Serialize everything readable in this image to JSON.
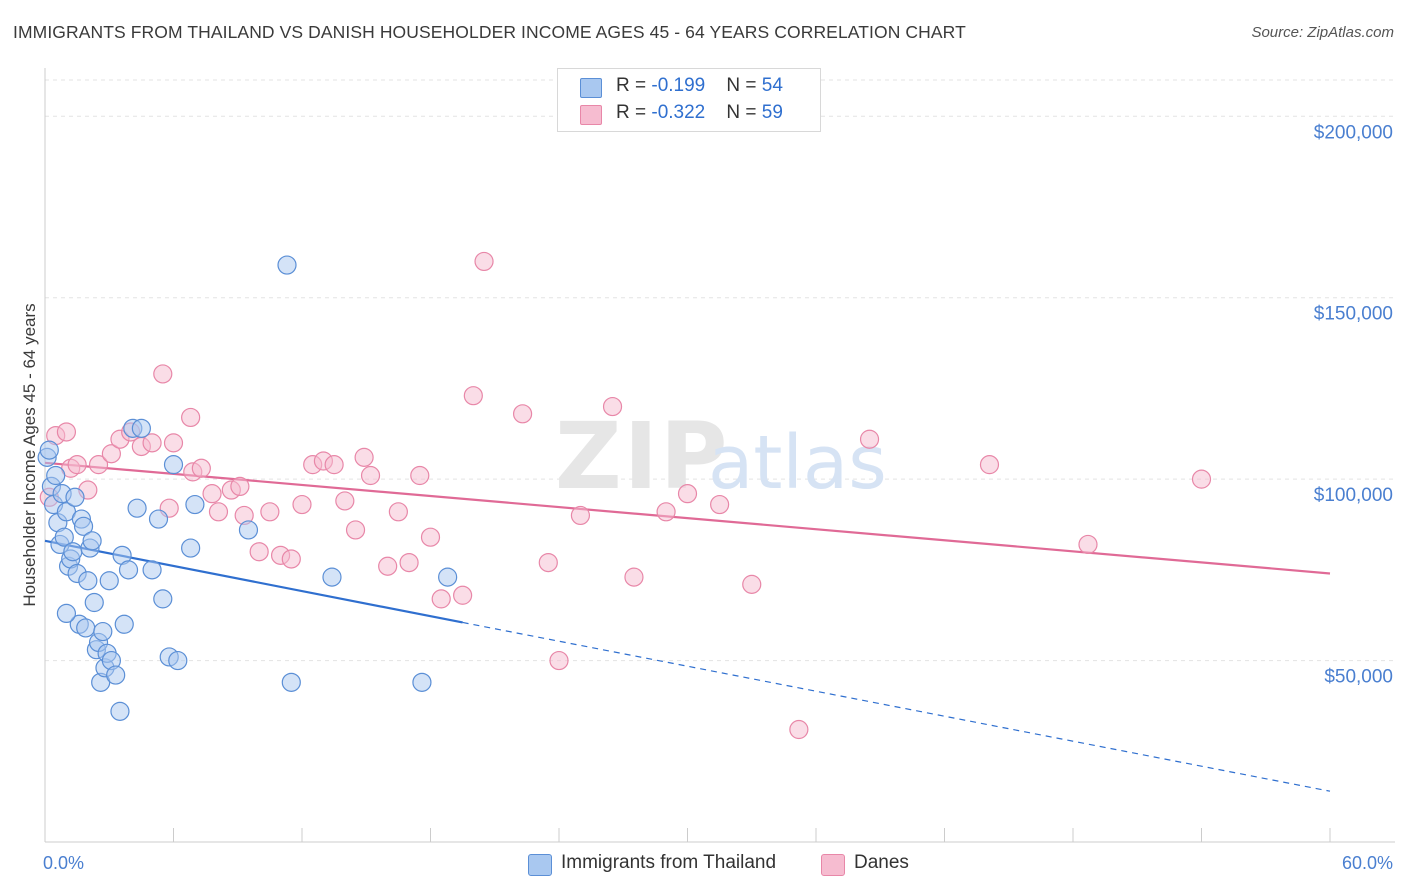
{
  "title": "IMMIGRANTS FROM THAILAND VS DANISH HOUSEHOLDER INCOME AGES 45 - 64 YEARS CORRELATION CHART",
  "source": "Source: ZipAtlas.com",
  "watermark": {
    "part1": "ZIP",
    "part2": "atlas"
  },
  "legend": {
    "series1": {
      "r_label": "R = ",
      "r_value": "-0.199",
      "n_label": "N = ",
      "n_value": "54"
    },
    "series2": {
      "r_label": "R = ",
      "r_value": "-0.322",
      "n_label": "N = ",
      "n_value": "59"
    }
  },
  "bottom_legend": [
    "Immigrants from Thailand",
    "Danes"
  ],
  "chart_data": {
    "type": "scatter",
    "ylabel": "Householder Income Ages 45 - 64 years",
    "x_tick_labels": [
      "0.0%",
      "60.0%"
    ],
    "y_tick_labels": [
      "$50,000",
      "$100,000",
      "$150,000",
      "$200,000"
    ],
    "y_ticks": [
      50000,
      100000,
      150000,
      200000
    ],
    "xlim": [
      0,
      60
    ],
    "ylim": [
      0,
      210000
    ],
    "grid": true,
    "legend_position": "top-center",
    "colors": {
      "series1_fill": "#a9c8f0",
      "series1_stroke": "#5b8fd6",
      "series1_line": "#2f6fcf",
      "series2_fill": "#f6bcd0",
      "series2_stroke": "#e887a8",
      "series2_line": "#e06a96",
      "grid": "#e3e3e3",
      "axis": "#cccccc",
      "tick_label": "#4a7fd0"
    },
    "series": [
      {
        "name": "Immigrants from Thailand",
        "x": [
          0.1,
          0.3,
          0.4,
          0.5,
          0.6,
          0.7,
          0.8,
          0.9,
          1.0,
          1.1,
          1.2,
          1.3,
          1.4,
          1.5,
          1.6,
          1.7,
          1.8,
          1.9,
          2.0,
          2.1,
          2.2,
          2.3,
          2.4,
          2.5,
          2.6,
          2.7,
          2.8,
          2.9,
          3.0,
          3.1,
          3.3,
          3.5,
          3.6,
          3.7,
          3.9,
          4.1,
          4.3,
          4.5,
          5.0,
          5.3,
          5.5,
          5.8,
          6.0,
          6.2,
          6.8,
          7.0,
          9.5,
          11.3,
          11.5,
          13.4,
          17.6,
          18.8,
          0.2,
          1.0
        ],
        "y": [
          106000,
          98000,
          93000,
          101000,
          88000,
          82000,
          96000,
          84000,
          91000,
          76000,
          78000,
          80000,
          95000,
          74000,
          60000,
          89000,
          87000,
          59000,
          72000,
          81000,
          83000,
          66000,
          53000,
          55000,
          44000,
          58000,
          48000,
          52000,
          72000,
          50000,
          46000,
          36000,
          79000,
          60000,
          75000,
          114000,
          92000,
          114000,
          75000,
          89000,
          67000,
          51000,
          104000,
          50000,
          81000,
          93000,
          86000,
          159000,
          44000,
          73000,
          44000,
          73000,
          108000,
          63000
        ],
        "trend": {
          "x": [
            0,
            19.5
          ],
          "y": [
            83000,
            60500
          ]
        },
        "trend_extension": {
          "x": [
            19.5,
            60
          ],
          "y": [
            60500,
            14000
          ]
        }
      },
      {
        "name": "Danes",
        "x": [
          0.2,
          0.5,
          1.0,
          1.2,
          1.5,
          2.0,
          2.5,
          3.1,
          3.5,
          4.0,
          4.5,
          5.0,
          5.5,
          5.8,
          6.0,
          6.8,
          6.9,
          7.3,
          7.8,
          8.1,
          8.7,
          9.1,
          9.3,
          10.0,
          10.5,
          11.0,
          11.5,
          12.0,
          12.5,
          13.0,
          13.5,
          14.0,
          14.5,
          14.9,
          15.2,
          16.0,
          16.5,
          17.0,
          17.5,
          18.0,
          18.5,
          19.5,
          20.0,
          20.5,
          22.3,
          23.5,
          24.0,
          25.0,
          26.5,
          27.5,
          29.0,
          30.0,
          31.5,
          33.0,
          35.2,
          38.5,
          44.1,
          48.7,
          54.0
        ],
        "y": [
          95000,
          112000,
          113000,
          103000,
          104000,
          97000,
          104000,
          107000,
          111000,
          113000,
          109000,
          110000,
          129000,
          92000,
          110000,
          117000,
          102000,
          103000,
          96000,
          91000,
          97000,
          98000,
          90000,
          80000,
          91000,
          79000,
          78000,
          93000,
          104000,
          105000,
          104000,
          94000,
          86000,
          106000,
          101000,
          76000,
          91000,
          77000,
          101000,
          84000,
          67000,
          68000,
          123000,
          160000,
          118000,
          77000,
          50000,
          90000,
          120000,
          73000,
          91000,
          96000,
          93000,
          71000,
          31000,
          111000,
          104000,
          82000,
          100000
        ],
        "trend": {
          "x": [
            0,
            60
          ],
          "y": [
            104500,
            74000
          ]
        }
      }
    ]
  }
}
